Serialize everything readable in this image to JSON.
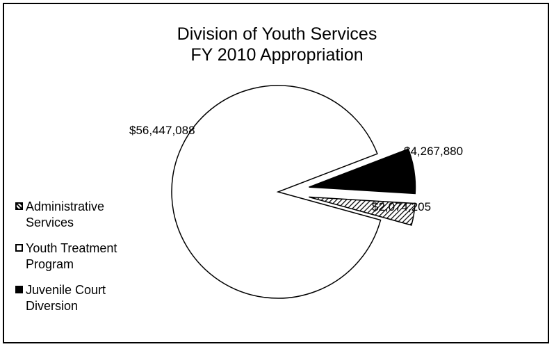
{
  "chart_data": {
    "type": "pie",
    "title": "Division of Youth Services",
    "subtitle": "FY 2010 Appropriation",
    "legend_position": "left",
    "slices": [
      {
        "name": "Administrative Services",
        "value": 2074205,
        "label": "$2,074,205",
        "pattern": "hatched",
        "exploded": true
      },
      {
        "name": "Youth Treatment Program",
        "value": 56447088,
        "label": "$56,447,088",
        "pattern": "white",
        "exploded": false
      },
      {
        "name": "Juvenile Court Diversion",
        "value": 4267880,
        "label": "$4,267,880",
        "pattern": "black",
        "exploded": true
      }
    ],
    "legend": [
      {
        "lines": [
          "Administrative",
          "Services"
        ]
      },
      {
        "lines": [
          "Youth Treatment",
          "Program"
        ]
      },
      {
        "lines": [
          "Juvenile Court",
          "Diversion"
        ]
      }
    ]
  }
}
